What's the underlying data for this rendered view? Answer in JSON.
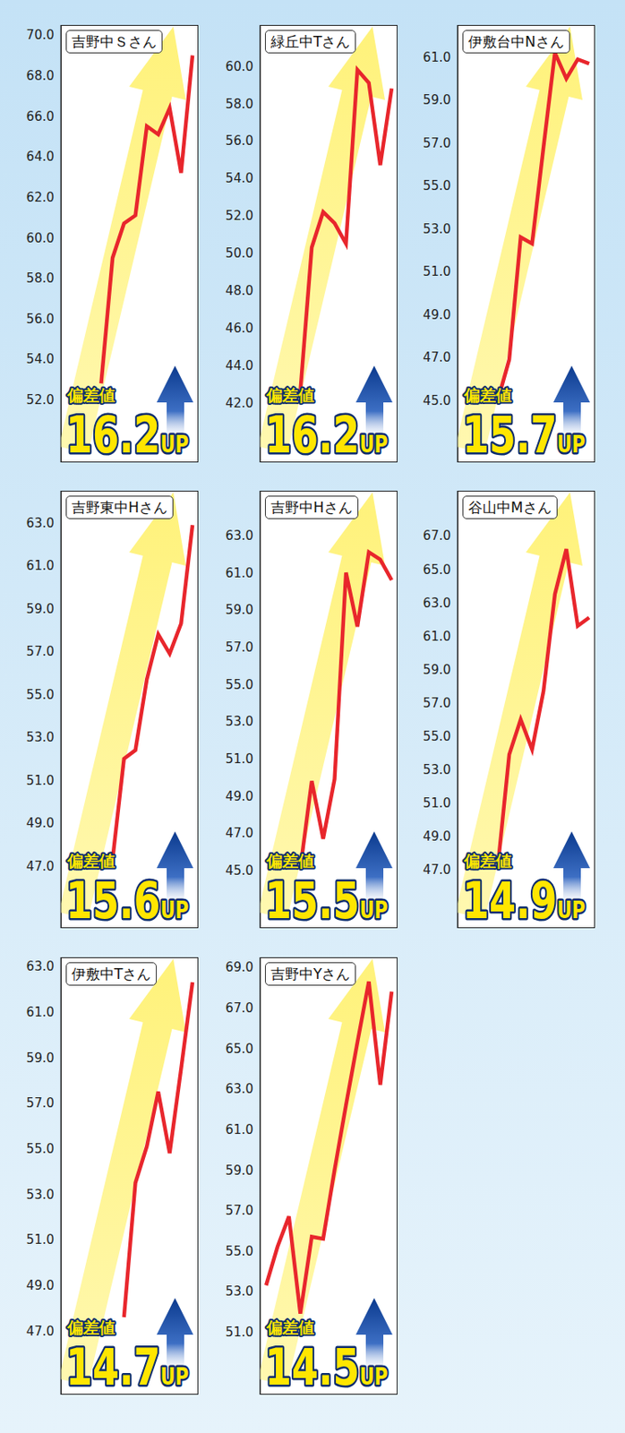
{
  "chart_data": [
    {
      "type": "line",
      "title": "吉野中Ｓさん",
      "color": "#e8262c",
      "tick_labels": "y",
      "values": [
        52.8,
        59.0,
        60.7,
        61.1,
        65.5,
        65.1,
        66.4,
        63.2,
        69.0
      ],
      "ylim": [
        48.9,
        70.5
      ],
      "yticks": [
        {
          "value": 52,
          "label": "52.0"
        },
        {
          "value": 54,
          "label": "54.0"
        },
        {
          "value": 56,
          "label": "56.0"
        },
        {
          "value": 58,
          "label": "58.0"
        },
        {
          "value": 60,
          "label": "60.0"
        },
        {
          "value": 62,
          "label": "62.0"
        },
        {
          "value": 64,
          "label": "64.0"
        },
        {
          "value": 66,
          "label": "66.0"
        },
        {
          "value": 68,
          "label": "68.0"
        },
        {
          "value": 70,
          "label": "70.0"
        }
      ],
      "badge": {
        "label": "偏差値",
        "value": 16.2,
        "unit": "UP"
      }
    },
    {
      "type": "line",
      "title": "緑丘中Tさん",
      "color": "#e8262c",
      "tick_labels": "y",
      "values": [
        42.6,
        50.3,
        52.2,
        51.6,
        50.5,
        59.8,
        59.1,
        54.7,
        58.8
      ],
      "ylim": [
        38.8,
        62.2
      ],
      "yticks": [
        {
          "value": 42,
          "label": "42.0"
        },
        {
          "value": 44,
          "label": "44.0"
        },
        {
          "value": 46,
          "label": "46.0"
        },
        {
          "value": 48,
          "label": "48.0"
        },
        {
          "value": 50,
          "label": "50.0"
        },
        {
          "value": 52,
          "label": "52.0"
        },
        {
          "value": 54,
          "label": "54.0"
        },
        {
          "value": 56,
          "label": "56.0"
        },
        {
          "value": 58,
          "label": "58.0"
        },
        {
          "value": 60,
          "label": "60.0"
        }
      ],
      "badge": {
        "label": "偏差値",
        "value": 16.2,
        "unit": "UP"
      }
    },
    {
      "type": "line",
      "title": "伊敷台中Nさん",
      "color": "#e8262c",
      "tick_labels": "y",
      "values": [
        45.0,
        46.9,
        52.6,
        52.3,
        56.8,
        61.2,
        60.0,
        60.9,
        60.7
      ],
      "ylim": [
        42.1,
        62.5
      ],
      "yticks": [
        {
          "value": 45,
          "label": "45.0"
        },
        {
          "value": 47,
          "label": "47.0"
        },
        {
          "value": 49,
          "label": "49.0"
        },
        {
          "value": 51,
          "label": "51.0"
        },
        {
          "value": 53,
          "label": "53.0"
        },
        {
          "value": 55,
          "label": "55.0"
        },
        {
          "value": 57,
          "label": "57.0"
        },
        {
          "value": 59,
          "label": "59.0"
        },
        {
          "value": 61,
          "label": "61.0"
        }
      ],
      "badge": {
        "label": "偏差値",
        "value": 15.7,
        "unit": "UP"
      }
    },
    {
      "type": "line",
      "title": "吉野東中Hさん",
      "color": "#e8262c",
      "tick_labels": "y",
      "values": [
        47.3,
        52.0,
        52.4,
        55.7,
        57.8,
        56.9,
        58.3,
        62.9
      ],
      "ylim": [
        44.1,
        64.5
      ],
      "yticks": [
        {
          "value": 47,
          "label": "47.0"
        },
        {
          "value": 49,
          "label": "49.0"
        },
        {
          "value": 51,
          "label": "51.0"
        },
        {
          "value": 53,
          "label": "53.0"
        },
        {
          "value": 55,
          "label": "55.0"
        },
        {
          "value": 57,
          "label": "57.0"
        },
        {
          "value": 59,
          "label": "59.0"
        },
        {
          "value": 61,
          "label": "61.0"
        },
        {
          "value": 63,
          "label": "63.0"
        }
      ],
      "badge": {
        "label": "偏差値",
        "value": 15.6,
        "unit": "UP"
      }
    },
    {
      "type": "line",
      "title": "吉野中Hさん",
      "color": "#e8262c",
      "tick_labels": "y",
      "values": [
        45.1,
        49.8,
        46.7,
        49.9,
        61.0,
        58.1,
        62.1,
        61.7,
        60.6
      ],
      "ylim": [
        41.9,
        65.4
      ],
      "yticks": [
        {
          "value": 45,
          "label": "45.0"
        },
        {
          "value": 47,
          "label": "47.0"
        },
        {
          "value": 49,
          "label": "49.0"
        },
        {
          "value": 51,
          "label": "51.0"
        },
        {
          "value": 53,
          "label": "53.0"
        },
        {
          "value": 55,
          "label": "55.0"
        },
        {
          "value": 57,
          "label": "57.0"
        },
        {
          "value": 59,
          "label": "59.0"
        },
        {
          "value": 61,
          "label": "61.0"
        },
        {
          "value": 63,
          "label": "63.0"
        }
      ],
      "badge": {
        "label": "偏差値",
        "value": 15.5,
        "unit": "UP"
      }
    },
    {
      "type": "line",
      "title": "谷山中Mさん",
      "color": "#e8262c",
      "tick_labels": "y",
      "values": [
        47.2,
        53.9,
        56.0,
        54.2,
        57.7,
        63.5,
        66.2,
        61.6,
        62.1
      ],
      "ylim": [
        43.5,
        69.7
      ],
      "yticks": [
        {
          "value": 47,
          "label": "47.0"
        },
        {
          "value": 49,
          "label": "49.0"
        },
        {
          "value": 51,
          "label": "51.0"
        },
        {
          "value": 53,
          "label": "53.0"
        },
        {
          "value": 55,
          "label": "55.0"
        },
        {
          "value": 57,
          "label": "57.0"
        },
        {
          "value": 59,
          "label": "59.0"
        },
        {
          "value": 61,
          "label": "61.0"
        },
        {
          "value": 63,
          "label": "63.0"
        },
        {
          "value": 65,
          "label": "65.0"
        },
        {
          "value": 67,
          "label": "67.0"
        }
      ],
      "badge": {
        "label": "偏差値",
        "value": 14.9,
        "unit": "UP"
      }
    },
    {
      "type": "line",
      "title": "伊敷中Tさん",
      "color": "#e8262c",
      "tick_labels": "y",
      "values": [
        47.6,
        53.5,
        55.1,
        57.5,
        54.8,
        58.5,
        62.3
      ],
      "ylim": [
        44.2,
        63.4
      ],
      "yticks": [
        {
          "value": 47,
          "label": "47.0"
        },
        {
          "value": 49,
          "label": "49.0"
        },
        {
          "value": 51,
          "label": "51.0"
        },
        {
          "value": 53,
          "label": "53.0"
        },
        {
          "value": 55,
          "label": "55.0"
        },
        {
          "value": 57,
          "label": "57.0"
        },
        {
          "value": 59,
          "label": "59.0"
        },
        {
          "value": 61,
          "label": "61.0"
        },
        {
          "value": 63,
          "label": "63.0"
        }
      ],
      "badge": {
        "label": "偏差値",
        "value": 14.7,
        "unit": "UP"
      }
    },
    {
      "type": "line",
      "title": "吉野中Yさん",
      "color": "#e8262c",
      "tick_labels": "y",
      "values": [
        53.3,
        55.2,
        56.7,
        51.9,
        55.7,
        55.6,
        59.0,
        62.2,
        65.3,
        68.3,
        63.2,
        67.8
      ],
      "ylim": [
        47.9,
        69.5
      ],
      "yticks": [
        {
          "value": 51,
          "label": "51.0"
        },
        {
          "value": 53,
          "label": "53.0"
        },
        {
          "value": 55,
          "label": "55.0"
        },
        {
          "value": 57,
          "label": "57.0"
        },
        {
          "value": 59,
          "label": "59.0"
        },
        {
          "value": 61,
          "label": "61.0"
        },
        {
          "value": 63,
          "label": "63.0"
        },
        {
          "value": 65,
          "label": "65.0"
        },
        {
          "value": 67,
          "label": "67.0"
        },
        {
          "value": 69,
          "label": "69.0"
        }
      ],
      "badge": {
        "label": "偏差値",
        "value": 14.5,
        "unit": "UP"
      }
    }
  ]
}
